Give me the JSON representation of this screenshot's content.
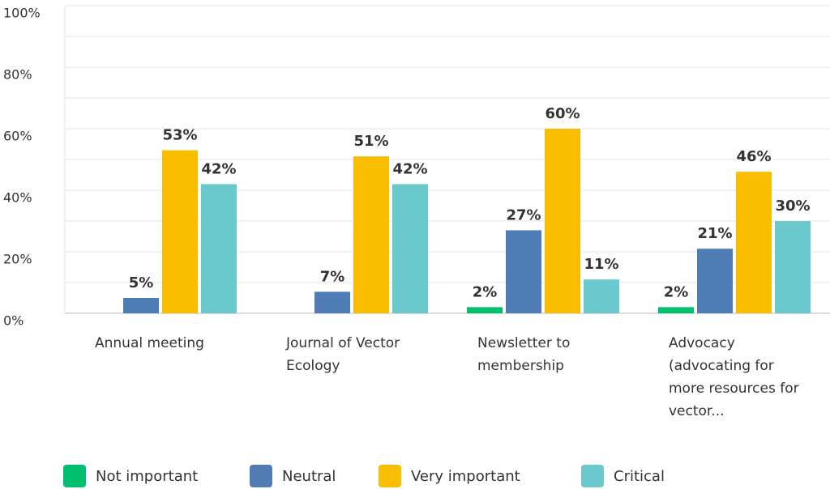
{
  "chart_data": {
    "type": "bar",
    "categories": [
      "Annual meeting",
      "Journal of Vector Ecology",
      "Newsletter to membership",
      "Advocacy (advocating for more resources for vector..."
    ],
    "series": [
      {
        "name": "Not important",
        "color": "#00bf6f",
        "values": [
          0,
          0,
          2,
          2
        ],
        "value_labels": [
          null,
          null,
          "2%",
          "2%"
        ]
      },
      {
        "name": "Neutral",
        "color": "#507cb6",
        "values": [
          5,
          7,
          27,
          21
        ],
        "value_labels": [
          "5%",
          "7%",
          "27%",
          "21%"
        ]
      },
      {
        "name": "Very important",
        "color": "#f9be00",
        "values": [
          53,
          51,
          60,
          46
        ],
        "value_labels": [
          "53%",
          "51%",
          "60%",
          "46%"
        ]
      },
      {
        "name": "Critical",
        "color": "#6bc8cd",
        "values": [
          42,
          42,
          11,
          30
        ],
        "value_labels": [
          "42%",
          "42%",
          "11%",
          "30%"
        ]
      }
    ],
    "ylim": [
      0,
      100
    ],
    "yticks": [
      {
        "value": 0,
        "label": "0%"
      },
      {
        "value": 20,
        "label": "20%"
      },
      {
        "value": 40,
        "label": "40%"
      },
      {
        "value": 60,
        "label": "60%"
      },
      {
        "value": 80,
        "label": "80%"
      },
      {
        "value": 100,
        "label": "100%"
      }
    ],
    "minor_yticks": [
      10,
      30,
      50,
      70,
      90
    ],
    "grid": true,
    "legend": "bottom"
  }
}
